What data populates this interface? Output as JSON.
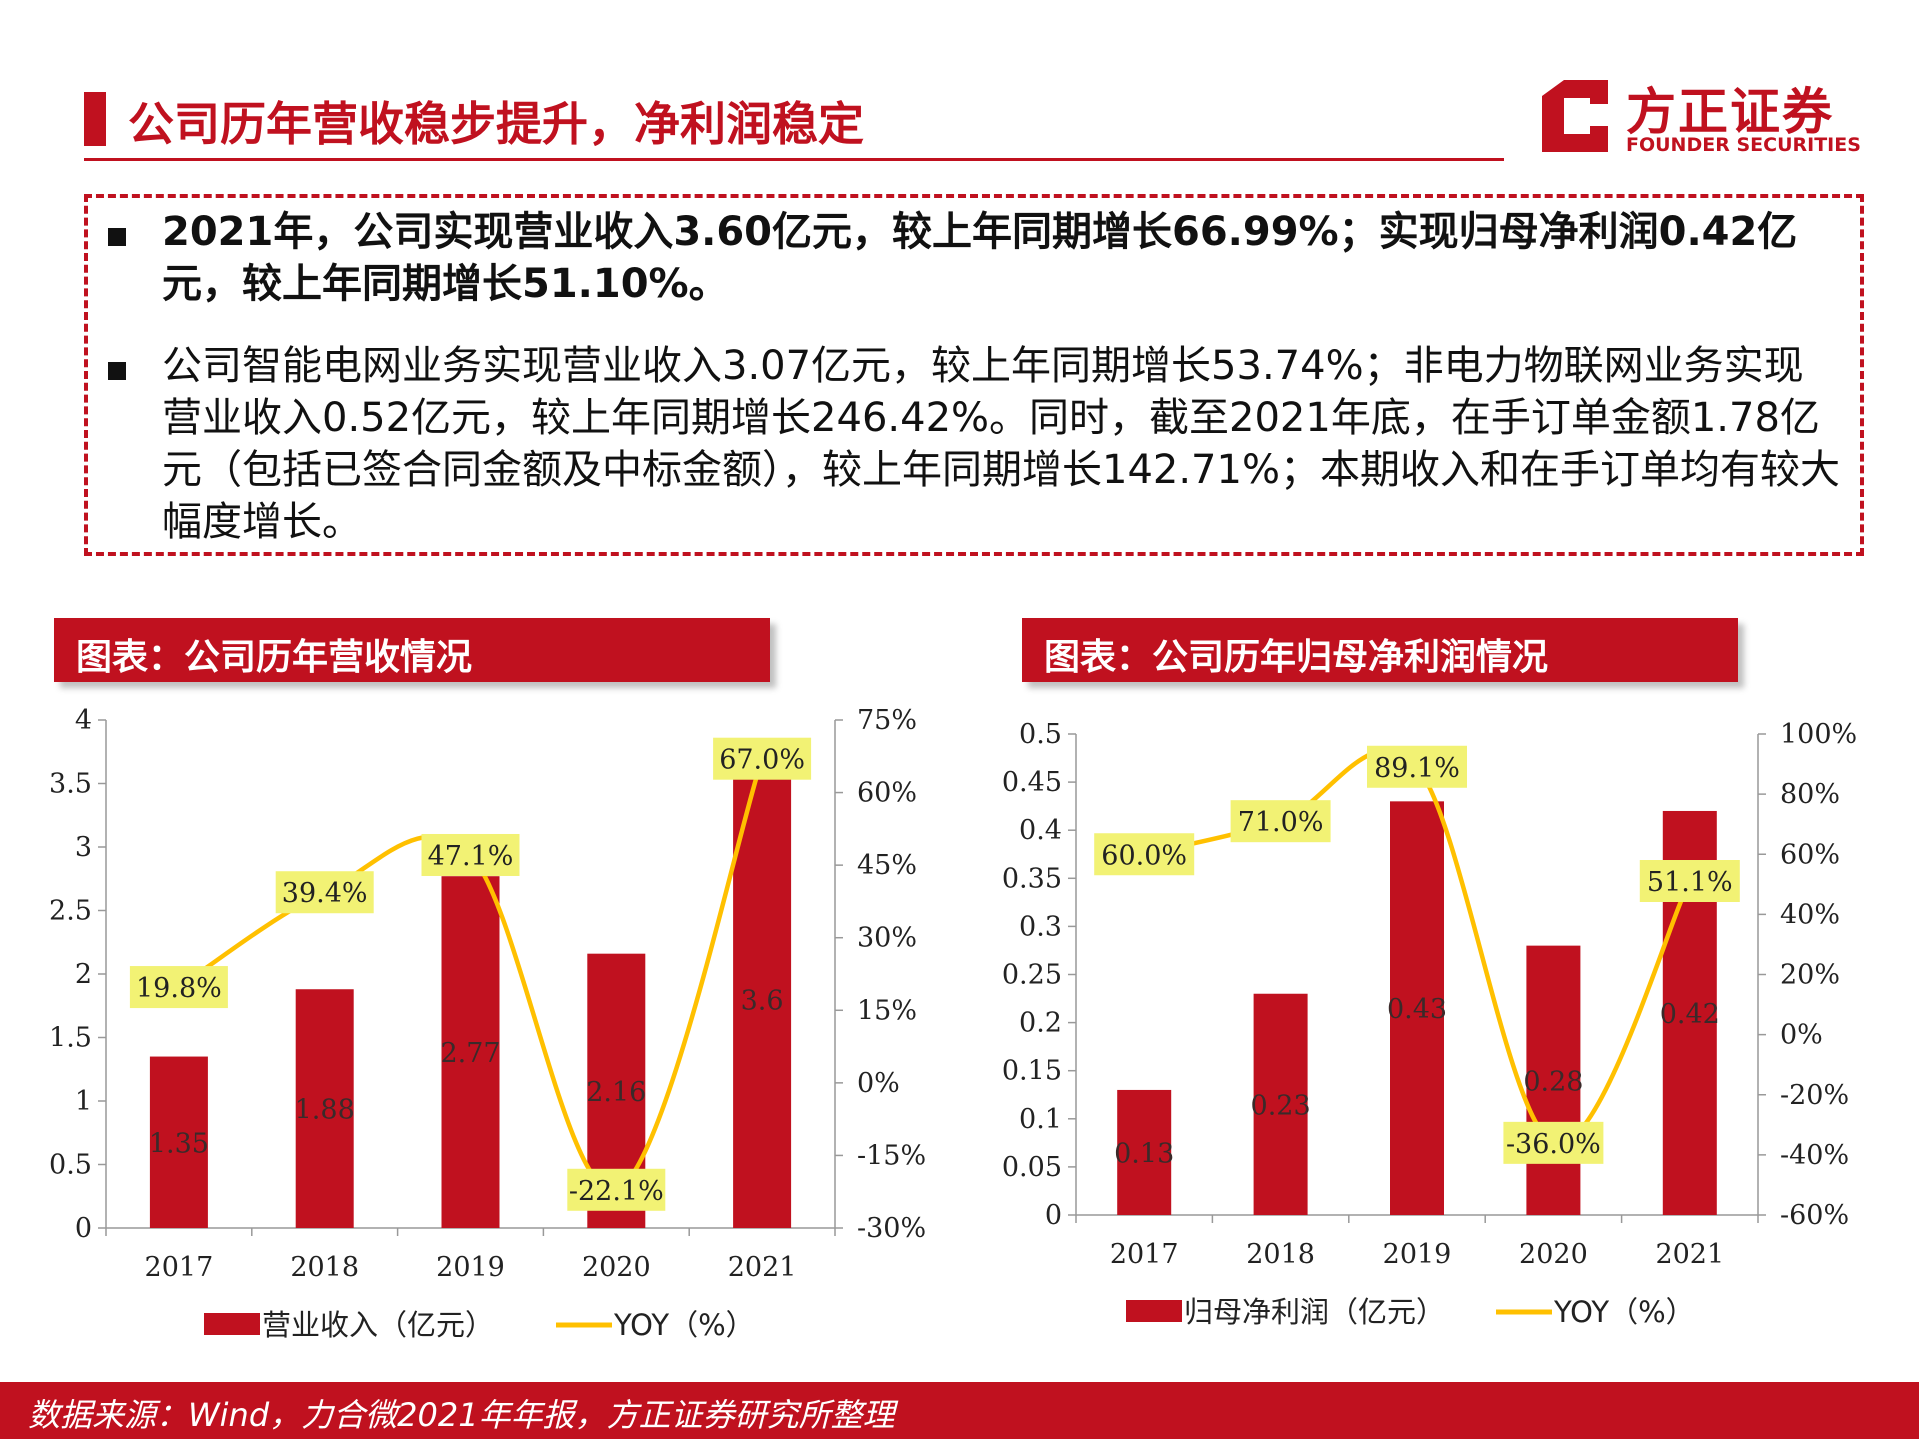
{
  "header": {
    "title": "公司历年营收稳步提升，净利润稳定",
    "logo_cn": "方正证券",
    "logo_en": "FOUNDER SECURITIES"
  },
  "summary": {
    "bullet1": "2021年，公司实现营业收入3.60亿元，较上年同期增长66.99%；实现归母净利润0.42亿元，较上年同期增长51.10%。",
    "bullet2": "公司智能电网业务实现营业收入3.07亿元，较上年同期增长53.74%；非电力物联网业务实现营业收入0.52亿元，较上年同期增长246.42%。同时，截至2021年底，在手订单金额1.78亿元（包括已签合同金额及中标金额），较上年同期增长142.71%；本期收入和在手订单均有较大幅度增长。"
  },
  "chart_data": [
    {
      "type": "bar",
      "panel_title": "图表：公司历年营收情况",
      "categories": [
        "2017",
        "2018",
        "2019",
        "2020",
        "2021"
      ],
      "series": [
        {
          "name": "营业收入（亿元）",
          "values": [
            1.35,
            1.88,
            2.77,
            2.16,
            3.6
          ],
          "labels": [
            "1.35",
            "1.88",
            "2.77",
            "2.16",
            "3.6"
          ],
          "color": "#c0111f",
          "axis": "left"
        },
        {
          "name": "YOY（%）",
          "type": "line",
          "values": [
            19.8,
            39.4,
            47.1,
            -22.1,
            67.0
          ],
          "labels": [
            "19.8%",
            "39.4%",
            "47.1%",
            "-22.1%",
            "67.0%"
          ],
          "color": "#ffc000",
          "axis": "right"
        }
      ],
      "y_left": {
        "min": 0,
        "max": 4,
        "ticks": [
          "0",
          "0.5",
          "1",
          "1.5",
          "2",
          "2.5",
          "3",
          "3.5",
          "4"
        ]
      },
      "y_right": {
        "min": -30,
        "max": 75,
        "ticks": [
          "-30%",
          "-15%",
          "0%",
          "15%",
          "30%",
          "45%",
          "60%",
          "75%"
        ]
      },
      "legend_position": "bottom"
    },
    {
      "type": "bar",
      "panel_title": "图表：公司历年归母净利润情况",
      "categories": [
        "2017",
        "2018",
        "2019",
        "2020",
        "2021"
      ],
      "series": [
        {
          "name": "归母净利润（亿元）",
          "values": [
            0.13,
            0.23,
            0.43,
            0.28,
            0.42
          ],
          "labels": [
            "0.13",
            "0.23",
            "0.43",
            "0.28",
            "0.42"
          ],
          "color": "#c0111f",
          "axis": "left"
        },
        {
          "name": "YOY（%）",
          "type": "line",
          "values": [
            60.0,
            71.0,
            89.1,
            -36.0,
            51.1
          ],
          "labels": [
            "60.0%",
            "71.0%",
            "89.1%",
            "-36.0%",
            "51.1%"
          ],
          "color": "#ffc000",
          "axis": "right"
        }
      ],
      "y_left": {
        "min": 0,
        "max": 0.5,
        "ticks": [
          "0",
          "0.05",
          "0.1",
          "0.15",
          "0.2",
          "0.25",
          "0.3",
          "0.35",
          "0.4",
          "0.45",
          "0.5"
        ]
      },
      "y_right": {
        "min": -60,
        "max": 100,
        "ticks": [
          "-60%",
          "-40%",
          "-20%",
          "0%",
          "20%",
          "40%",
          "60%",
          "80%",
          "100%"
        ]
      },
      "legend_position": "bottom"
    }
  ],
  "footer": {
    "source": "数据来源：Wind，力合微2021年年报，方正证券研究所整理"
  }
}
